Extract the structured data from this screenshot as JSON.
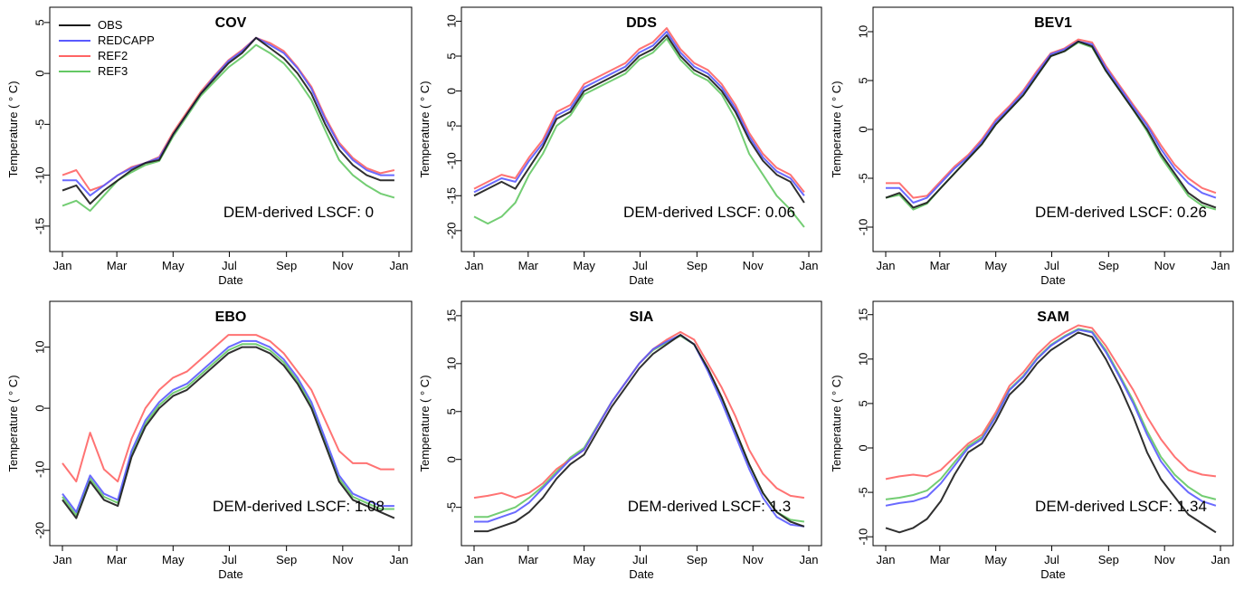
{
  "colors": {
    "OBS": "#1a1a1a",
    "REDCAPP": "#5a5aff",
    "REF2": "#ff6464",
    "REF3": "#64c864",
    "frame": "#000000"
  },
  "legend": {
    "entries": [
      {
        "name": "OBS",
        "color": "#1a1a1a"
      },
      {
        "name": "REDCAPP",
        "color": "#5a5aff"
      },
      {
        "name": "REF2",
        "color": "#ff6464"
      },
      {
        "name": "REF3",
        "color": "#64c864"
      }
    ]
  },
  "chart_data": [
    {
      "type": "line",
      "title": "COV",
      "xlabel": "Date",
      "ylabel": "Temperature ( ° C)",
      "annotation": "DEM-derived LSCF:  0",
      "x_ticks": [
        "Jan",
        "Mar",
        "May",
        "Jul",
        "Sep",
        "Nov",
        "Jan"
      ],
      "y_ticks": [
        -15,
        -10,
        -5,
        0,
        5
      ],
      "ylim": [
        -17.5,
        6.5
      ],
      "grid": false,
      "legend": "top-left",
      "x": [
        0,
        15,
        30,
        45,
        60,
        75,
        90,
        105,
        120,
        135,
        150,
        165,
        180,
        195,
        210,
        225,
        240,
        255,
        270,
        285,
        300,
        315,
        330,
        345,
        360
      ],
      "series": [
        {
          "name": "OBS",
          "values": [
            -11.5,
            -11.0,
            -12.8,
            -11.5,
            -10.5,
            -9.5,
            -8.8,
            -8.5,
            -6,
            -4,
            -2,
            -0.5,
            1,
            2,
            3.5,
            2.5,
            1.5,
            0,
            -2,
            -5,
            -7.5,
            -9,
            -10,
            -10.5,
            -10.5
          ]
        },
        {
          "name": "REDCAPP",
          "values": [
            -10.5,
            -10.5,
            -12,
            -11,
            -10,
            -9.3,
            -8.8,
            -8.3,
            -6,
            -4,
            -2,
            -0.3,
            1.2,
            2.2,
            3.5,
            2.8,
            2,
            0.5,
            -1.5,
            -4.5,
            -7,
            -8.5,
            -9.5,
            -10,
            -10
          ]
        },
        {
          "name": "REF2",
          "values": [
            -10,
            -9.5,
            -11.5,
            -11,
            -10,
            -9.2,
            -8.8,
            -8.2,
            -5.8,
            -3.8,
            -1.8,
            -0.2,
            1.3,
            2.3,
            3.5,
            3,
            2.2,
            0.6,
            -1.3,
            -4.3,
            -6.8,
            -8.3,
            -9.3,
            -9.8,
            -9.5
          ]
        },
        {
          "name": "REF3",
          "values": [
            -13,
            -12.5,
            -13.5,
            -12,
            -10.5,
            -9.7,
            -9,
            -8.6,
            -6.2,
            -4.2,
            -2.2,
            -0.8,
            0.6,
            1.6,
            2.8,
            2,
            1,
            -0.6,
            -2.6,
            -5.6,
            -8.5,
            -10,
            -11,
            -11.8,
            -12.2
          ]
        }
      ]
    },
    {
      "type": "line",
      "title": "DDS",
      "xlabel": "Date",
      "ylabel": "Temperature ( ° C)",
      "annotation": "DEM-derived LSCF:  0.06",
      "x_ticks": [
        "Jan",
        "Mar",
        "May",
        "Jul",
        "Sep",
        "Nov",
        "Jan"
      ],
      "y_ticks": [
        -20,
        -15,
        -10,
        -5,
        0,
        5,
        10
      ],
      "ylim": [
        -23,
        12
      ],
      "grid": false,
      "x": [
        0,
        15,
        30,
        45,
        60,
        75,
        90,
        105,
        120,
        135,
        150,
        165,
        180,
        195,
        210,
        225,
        240,
        255,
        270,
        285,
        300,
        315,
        330,
        345,
        360
      ],
      "series": [
        {
          "name": "OBS",
          "values": [
            -15,
            -14,
            -13,
            -14,
            -11,
            -8,
            -4,
            -3,
            0,
            1,
            2,
            3,
            5,
            6,
            8,
            5,
            3,
            2,
            0,
            -3,
            -7,
            -10,
            -12,
            -13,
            -16
          ]
        },
        {
          "name": "REDCAPP",
          "values": [
            -14.5,
            -13.5,
            -12.5,
            -13,
            -10,
            -7.5,
            -3.5,
            -2.5,
            0.5,
            1.5,
            2.5,
            3.5,
            5.5,
            6.5,
            8.5,
            5.5,
            3.5,
            2.5,
            0.5,
            -2.5,
            -6.5,
            -9.5,
            -11.5,
            -12.5,
            -15
          ]
        },
        {
          "name": "REF2",
          "values": [
            -14,
            -13,
            -12,
            -12.5,
            -9.5,
            -7,
            -3,
            -2,
            1,
            2,
            3,
            4,
            6,
            7,
            9,
            6,
            4,
            3,
            1,
            -2,
            -6,
            -9,
            -11,
            -12,
            -14.5
          ]
        },
        {
          "name": "REF3",
          "values": [
            -18,
            -19,
            -18,
            -16,
            -12,
            -9,
            -5,
            -3.5,
            -0.5,
            0.5,
            1.5,
            2.5,
            4.5,
            5.5,
            7.5,
            4.5,
            2.5,
            1.5,
            -0.5,
            -4,
            -9,
            -12,
            -15,
            -17,
            -19.5
          ]
        }
      ]
    },
    {
      "type": "line",
      "title": "BEV1",
      "xlabel": "Date",
      "ylabel": "Temperature ( ° C)",
      "annotation": "DEM-derived LSCF:  0.26",
      "x_ticks": [
        "Jan",
        "Mar",
        "May",
        "Jul",
        "Sep",
        "Nov",
        "Jan"
      ],
      "y_ticks": [
        -10,
        -5,
        0,
        5,
        10
      ],
      "ylim": [
        -12.5,
        12.5
      ],
      "grid": false,
      "x": [
        0,
        15,
        30,
        45,
        60,
        75,
        90,
        105,
        120,
        135,
        150,
        165,
        180,
        195,
        210,
        225,
        240,
        255,
        270,
        285,
        300,
        315,
        330,
        345,
        360
      ],
      "series": [
        {
          "name": "OBS",
          "values": [
            -7,
            -6.5,
            -8,
            -7.5,
            -6,
            -4.5,
            -3,
            -1.5,
            0.5,
            2,
            3.5,
            5.5,
            7.5,
            8,
            9,
            8.5,
            6,
            4,
            2,
            0,
            -2.5,
            -4.5,
            -6.5,
            -7.5,
            -8
          ]
        },
        {
          "name": "REDCAPP",
          "values": [
            -6,
            -6,
            -7.5,
            -7,
            -5.5,
            -4,
            -2.8,
            -1.2,
            0.8,
            2.2,
            3.8,
            5.8,
            7.7,
            8.2,
            9,
            8.7,
            6.3,
            4.3,
            2.3,
            0.4,
            -2,
            -4,
            -5.5,
            -6.5,
            -7
          ]
        },
        {
          "name": "REF2",
          "values": [
            -5.5,
            -5.5,
            -7,
            -6.8,
            -5.3,
            -3.8,
            -2.6,
            -1,
            1,
            2.4,
            4,
            6,
            7.8,
            8.3,
            9.2,
            8.9,
            6.5,
            4.5,
            2.5,
            0.6,
            -1.6,
            -3.6,
            -5,
            -6,
            -6.5
          ]
        },
        {
          "name": "REF3",
          "values": [
            -7,
            -6.7,
            -8.2,
            -7.6,
            -6,
            -4.5,
            -3,
            -1.5,
            0.5,
            2,
            3.5,
            5.5,
            7.5,
            8,
            8.9,
            8.4,
            6,
            4,
            2,
            -0.2,
            -2.8,
            -4.8,
            -6.8,
            -7.8,
            -8.2
          ]
        }
      ]
    },
    {
      "type": "line",
      "title": "EBO",
      "xlabel": "Date",
      "ylabel": "Temperature ( ° C)",
      "annotation": "DEM-derived LSCF:  1.08",
      "x_ticks": [
        "Jan",
        "Mar",
        "May",
        "Jul",
        "Sep",
        "Nov",
        "Jan"
      ],
      "y_ticks": [
        -20,
        -10,
        0,
        10
      ],
      "ylim": [
        -22.5,
        17.5
      ],
      "grid": false,
      "x": [
        0,
        15,
        30,
        45,
        60,
        75,
        90,
        105,
        120,
        135,
        150,
        165,
        180,
        195,
        210,
        225,
        240,
        255,
        270,
        285,
        300,
        315,
        330,
        345,
        360
      ],
      "series": [
        {
          "name": "OBS",
          "values": [
            -15,
            -18,
            -12,
            -15,
            -16,
            -8,
            -3,
            0,
            2,
            3,
            5,
            7,
            9,
            10,
            10,
            9,
            7,
            4,
            0,
            -6,
            -12,
            -15,
            -16,
            -17,
            -18
          ]
        },
        {
          "name": "REDCAPP",
          "values": [
            -14,
            -17,
            -11,
            -14,
            -15,
            -7,
            -2,
            1,
            3,
            4,
            6,
            8,
            10,
            11,
            11,
            10,
            8,
            5,
            1,
            -5,
            -11,
            -14,
            -15,
            -16,
            -16
          ]
        },
        {
          "name": "REF2",
          "values": [
            -9,
            -12,
            -4,
            -10,
            -12,
            -5,
            0,
            3,
            5,
            6,
            8,
            10,
            12,
            12,
            12,
            11,
            9,
            6,
            3,
            -2,
            -7,
            -9,
            -9,
            -10,
            -10
          ]
        },
        {
          "name": "REF3",
          "values": [
            -14.5,
            -17.5,
            -11.5,
            -14.5,
            -15.5,
            -7.5,
            -2.5,
            0.5,
            2.5,
            3.5,
            5.5,
            7.5,
            9.5,
            10.5,
            10.5,
            9.5,
            7.5,
            4.5,
            0.5,
            -5.5,
            -11.5,
            -14.5,
            -15.5,
            -16.5,
            -16.5
          ]
        }
      ]
    },
    {
      "type": "line",
      "title": "SIA",
      "xlabel": "Date",
      "ylabel": "Temperature ( ° C)",
      "annotation": "DEM-derived LSCF:  1.3",
      "x_ticks": [
        "Jan",
        "Mar",
        "May",
        "Jul",
        "Sep",
        "Nov",
        "Jan"
      ],
      "y_ticks": [
        -5,
        0,
        5,
        10,
        15
      ],
      "ylim": [
        -9,
        16.5
      ],
      "grid": false,
      "x": [
        0,
        15,
        30,
        45,
        60,
        75,
        90,
        105,
        120,
        135,
        150,
        165,
        180,
        195,
        210,
        225,
        240,
        255,
        270,
        285,
        300,
        315,
        330,
        345,
        360
      ],
      "series": [
        {
          "name": "OBS",
          "values": [
            -7.5,
            -7.5,
            -7,
            -6.5,
            -5.5,
            -4,
            -2,
            -0.5,
            0.5,
            3,
            5.5,
            7.5,
            9.5,
            11,
            12,
            13,
            12,
            9.5,
            6.5,
            3,
            -0.5,
            -3.5,
            -5.5,
            -6.5,
            -7
          ]
        },
        {
          "name": "REDCAPP",
          "values": [
            -6.5,
            -6.5,
            -6,
            -5.5,
            -4.5,
            -3,
            -1.5,
            0,
            1,
            3.5,
            6,
            8,
            10,
            11.5,
            12.3,
            13,
            12,
            9.2,
            6,
            2.5,
            -1,
            -4,
            -6,
            -6.8,
            -7
          ]
        },
        {
          "name": "REF2",
          "values": [
            -4,
            -3.8,
            -3.5,
            -4,
            -3.5,
            -2.5,
            -1,
            0,
            1,
            3.5,
            6,
            8,
            10,
            11.5,
            12.5,
            13.3,
            12.5,
            10,
            7.5,
            4.5,
            1,
            -1.5,
            -3,
            -3.8,
            -4
          ]
        },
        {
          "name": "REF3",
          "values": [
            -6,
            -6,
            -5.5,
            -5,
            -4,
            -2.8,
            -1.3,
            0.2,
            1.2,
            3.6,
            6,
            8,
            10,
            11.4,
            12.2,
            12.9,
            12,
            9.4,
            6.4,
            3,
            -0.5,
            -3.5,
            -5.5,
            -6.3,
            -6.5
          ]
        }
      ]
    },
    {
      "type": "line",
      "title": "SAM",
      "xlabel": "Date",
      "ylabel": "Temperature ( ° C)",
      "annotation": "DEM-derived LSCF:  1.34",
      "x_ticks": [
        "Jan",
        "Mar",
        "May",
        "Jul",
        "Sep",
        "Nov",
        "Jan"
      ],
      "y_ticks": [
        -10,
        -5,
        0,
        5,
        10,
        15
      ],
      "ylim": [
        -11,
        16.5
      ],
      "grid": false,
      "x": [
        0,
        15,
        30,
        45,
        60,
        75,
        90,
        105,
        120,
        135,
        150,
        165,
        180,
        195,
        210,
        225,
        240,
        255,
        270,
        285,
        300,
        315,
        330,
        345,
        360
      ],
      "series": [
        {
          "name": "OBS",
          "values": [
            -9,
            -9.5,
            -9,
            -8,
            -6,
            -3,
            -0.5,
            0.5,
            3,
            6,
            7.5,
            9.5,
            11,
            12,
            13,
            12.5,
            10,
            7,
            3.5,
            -0.5,
            -3.5,
            -5.5,
            -7.5,
            -8.5,
            -9.5
          ]
        },
        {
          "name": "REDCAPP",
          "values": [
            -6.5,
            -6.2,
            -6,
            -5.5,
            -4,
            -2,
            0,
            1,
            3.5,
            6.5,
            8,
            10,
            11.5,
            12.5,
            13.3,
            13,
            10.8,
            8,
            5,
            1.5,
            -1.5,
            -3.5,
            -5,
            -6,
            -6.5
          ]
        },
        {
          "name": "REF2",
          "values": [
            -3.5,
            -3.2,
            -3,
            -3.2,
            -2.5,
            -1,
            0.5,
            1.5,
            4,
            7,
            8.5,
            10.5,
            12,
            13,
            13.8,
            13.5,
            11.5,
            9,
            6.5,
            3.5,
            1,
            -1,
            -2.5,
            -3,
            -3.2
          ]
        },
        {
          "name": "REF3",
          "values": [
            -5.8,
            -5.6,
            -5.3,
            -4.8,
            -3.5,
            -1.6,
            0.2,
            1.2,
            3.7,
            6.6,
            8.1,
            10.1,
            11.6,
            12.6,
            13.4,
            13.1,
            11,
            8.2,
            5.3,
            1.9,
            -1,
            -3,
            -4.4,
            -5.4,
            -5.8
          ]
        }
      ]
    }
  ]
}
